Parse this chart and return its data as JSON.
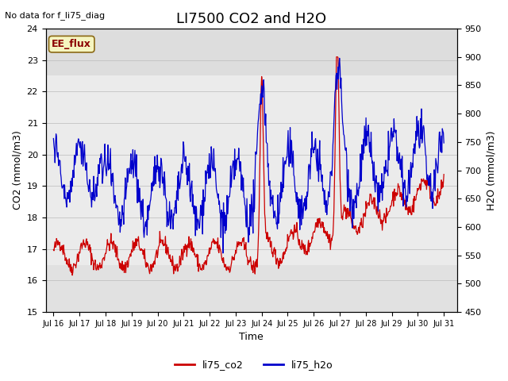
{
  "title": "LI7500 CO2 and H2O",
  "xlabel": "Time",
  "ylabel_left": "CO2 (mmol/m3)",
  "ylabel_right": "H2O (mmol/m3)",
  "annotation_top_left": "No data for f_li75_diag",
  "box_label": "EE_flux",
  "co2_color": "#cc0000",
  "h2o_color": "#0000cc",
  "ylim_left": [
    15.0,
    24.0
  ],
  "ylim_right": [
    450,
    950
  ],
  "yticks_left": [
    15.0,
    16.0,
    17.0,
    18.0,
    19.0,
    20.0,
    21.0,
    22.0,
    23.0,
    24.0
  ],
  "yticks_right": [
    450,
    500,
    550,
    600,
    650,
    700,
    750,
    800,
    850,
    900,
    950
  ],
  "xtick_labels": [
    "Jul 16",
    "Jul 17",
    "Jul 18",
    "Jul 19",
    "Jul 20",
    "Jul 21",
    "Jul 22",
    "Jul 23",
    "Jul 24",
    "Jul 25",
    "Jul 26",
    "Jul 27",
    "Jul 28",
    "Jul 29",
    "Jul 30",
    "Jul 31"
  ],
  "legend_labels": [
    "li75_co2",
    "li75_h2o"
  ],
  "plot_bg_color": "#ebebeb",
  "title_fontsize": 13,
  "label_fontsize": 9,
  "tick_fontsize": 8
}
